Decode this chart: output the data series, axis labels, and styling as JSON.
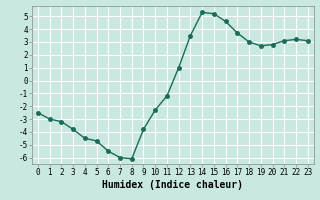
{
  "x": [
    0,
    1,
    2,
    3,
    4,
    5,
    6,
    7,
    8,
    9,
    10,
    11,
    12,
    13,
    14,
    15,
    16,
    17,
    18,
    19,
    20,
    21,
    22,
    23
  ],
  "y": [
    -2.5,
    -3.0,
    -3.2,
    -3.8,
    -4.5,
    -4.7,
    -5.5,
    -6.0,
    -6.1,
    -3.8,
    -2.3,
    -1.2,
    1.0,
    3.5,
    5.3,
    5.2,
    4.6,
    3.7,
    3.0,
    2.7,
    2.8,
    3.1,
    3.2,
    3.1
  ],
  "line_color": "#1a6b5a",
  "marker": "o",
  "markersize": 2.5,
  "linewidth": 1.0,
  "xlabel": "Humidex (Indice chaleur)",
  "xlabel_fontsize": 7,
  "bg_color": "#c8e8e0",
  "grid_color": "#ffffff",
  "xlim": [
    -0.5,
    23.5
  ],
  "ylim": [
    -6.5,
    5.8
  ],
  "yticks": [
    -6,
    -5,
    -4,
    -3,
    -2,
    -1,
    0,
    1,
    2,
    3,
    4,
    5
  ],
  "xticks": [
    0,
    1,
    2,
    3,
    4,
    5,
    6,
    7,
    8,
    9,
    10,
    11,
    12,
    13,
    14,
    15,
    16,
    17,
    18,
    19,
    20,
    21,
    22,
    23
  ],
  "tick_fontsize": 5.5,
  "spine_color": "#888888"
}
